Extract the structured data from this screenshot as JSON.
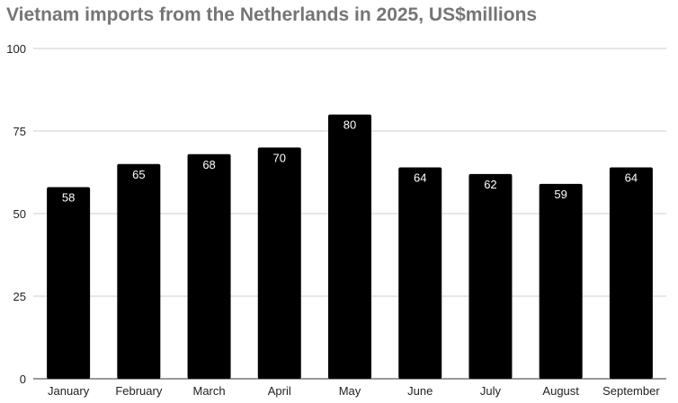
{
  "chart_data": {
    "type": "bar",
    "title": "Vietnam imports from the Netherlands in 2025, US$millions",
    "categories": [
      "January",
      "February",
      "March",
      "April",
      "May",
      "June",
      "July",
      "August",
      "September"
    ],
    "values": [
      58,
      65,
      68,
      70,
      80,
      64,
      62,
      59,
      64
    ],
    "xlabel": "",
    "ylabel": "",
    "ylim": [
      0,
      100
    ],
    "yticks": [
      0,
      25,
      50,
      75,
      100
    ],
    "grid": true,
    "legend": "none",
    "bar_color": "#000000",
    "data_label_color": "#ffffff",
    "title_color": "#757575"
  }
}
